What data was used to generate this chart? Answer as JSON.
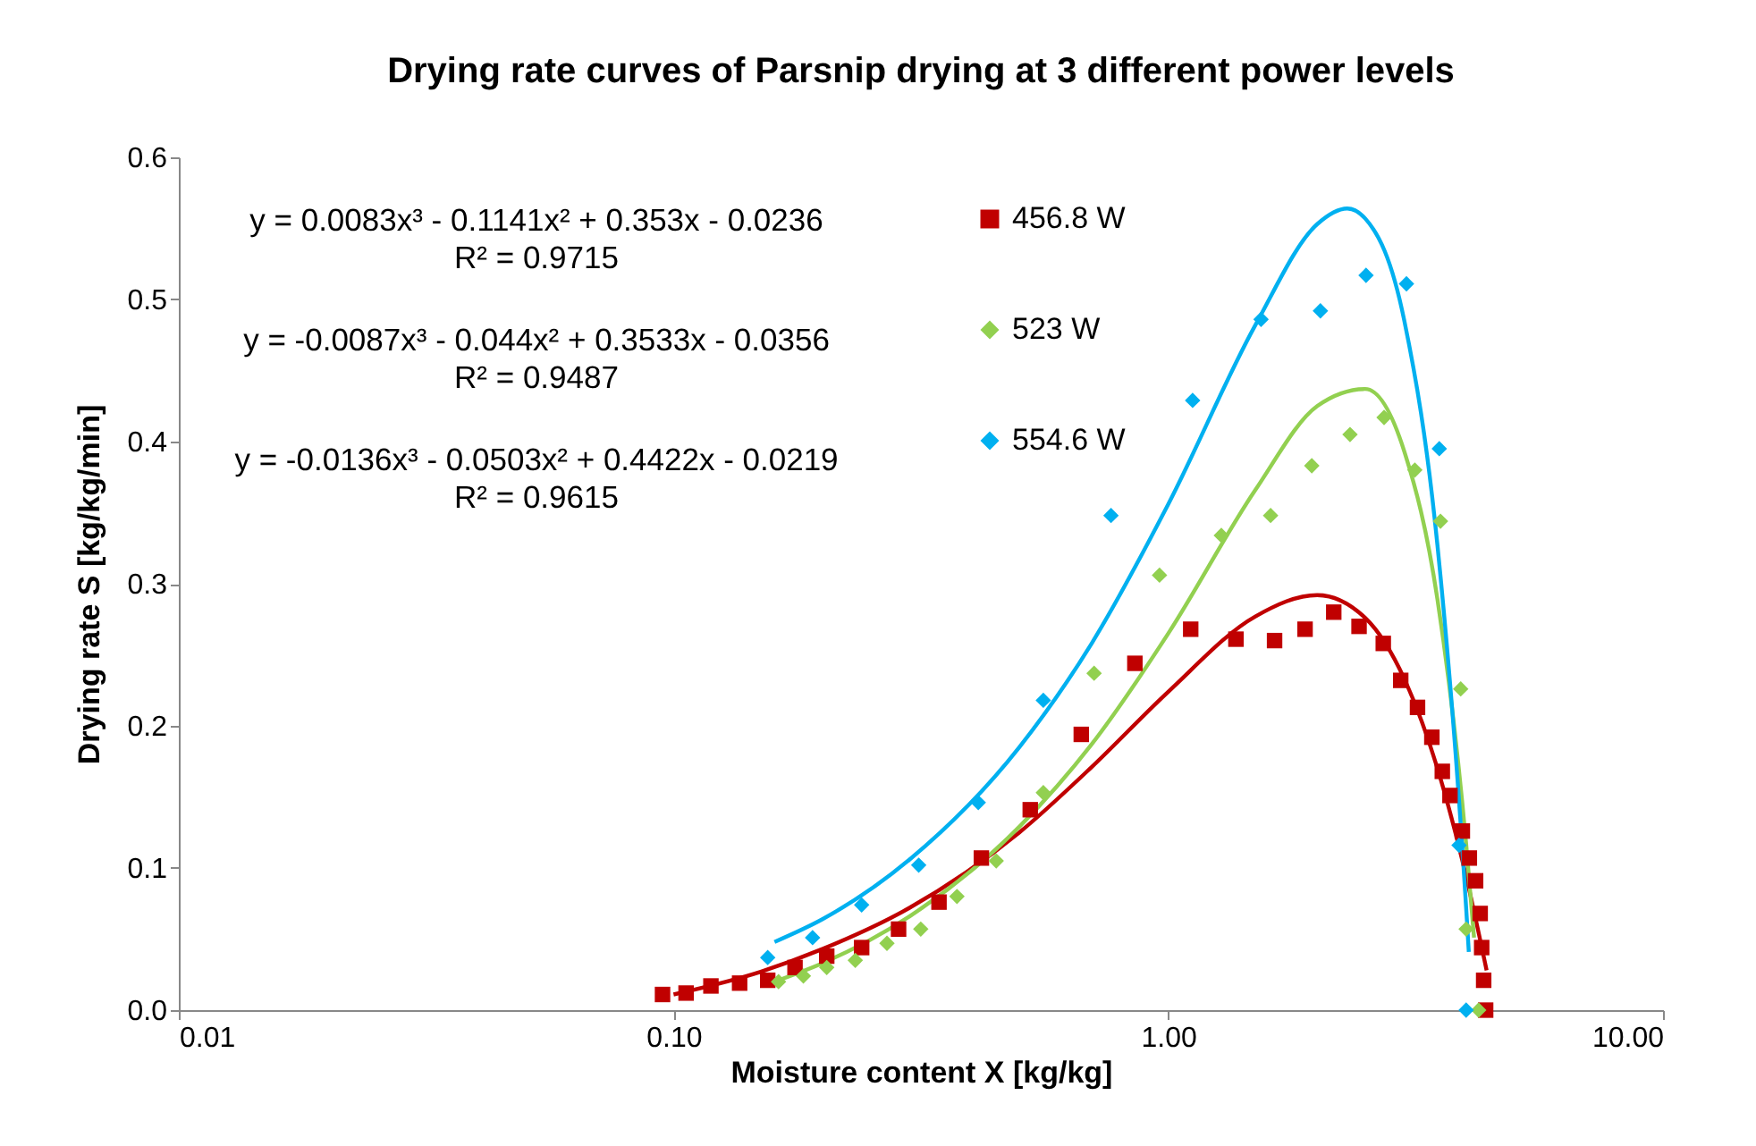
{
  "chart_data": {
    "type": "scatter",
    "title": "Drying rate curves of Parsnip drying at 3 different power levels",
    "xlabel": "Moisture content     X     [kg/kg]",
    "ylabel": "Drying rate        S        [kg/kg/min]",
    "log": "x",
    "xlim": [
      0.01,
      10
    ],
    "ylim": [
      0,
      0.6
    ],
    "xticks": [
      {
        "value": 0.01,
        "label": "0.01"
      },
      {
        "value": 0.1,
        "label": "0.10"
      },
      {
        "value": 1,
        "label": "1.00"
      },
      {
        "value": 10,
        "label": "10.00"
      }
    ],
    "yticks": [
      {
        "value": 0,
        "label": "0.0"
      },
      {
        "value": 0.1,
        "label": "0.1"
      },
      {
        "value": 0.2,
        "label": "0.2"
      },
      {
        "value": 0.3,
        "label": "0.3"
      },
      {
        "value": 0.4,
        "label": "0.4"
      },
      {
        "value": 0.5,
        "label": "0.5"
      },
      {
        "value": 0.6,
        "label": "0.6"
      }
    ],
    "grid": false,
    "legend": "top",
    "annotations": [
      "y = 0.0083x³ - 0.1141x² + 0.353x - 0.0236",
      "R² = 0.9715",
      "y = -0.0087x³ - 0.044x² + 0.3533x - 0.0356",
      "R² = 0.9487",
      "y = -0.0136x³ - 0.0503x² + 0.4422x - 0.0219",
      "R² = 0.9615"
    ],
    "series": [
      {
        "name": "456.8 W",
        "type": "scatter",
        "marker": "square",
        "color": "#c00000",
        "x": [
          0.095,
          0.106,
          0.119,
          0.136,
          0.155,
          0.176,
          0.204,
          0.24,
          0.285,
          0.344,
          0.419,
          0.526,
          0.667,
          0.856,
          1.11,
          1.37,
          1.64,
          1.89,
          2.16,
          2.43,
          2.72,
          2.95,
          3.19,
          3.41,
          3.58,
          3.71,
          3.93,
          4.06,
          4.18,
          4.27,
          4.3,
          4.34,
          4.38
        ],
        "values": [
          0.011,
          0.012,
          0.017,
          0.019,
          0.021,
          0.03,
          0.038,
          0.044,
          0.057,
          0.076,
          0.107,
          0.141,
          0.194,
          0.244,
          0.268,
          0.261,
          0.26,
          0.268,
          0.28,
          0.27,
          0.258,
          0.232,
          0.213,
          0.192,
          0.168,
          0.151,
          0.126,
          0.107,
          0.091,
          0.068,
          0.044,
          0.021,
          0.0
        ]
      },
      {
        "name": "523 W",
        "type": "scatter",
        "marker": "diamond",
        "color": "#92d050",
        "x": [
          0.163,
          0.183,
          0.204,
          0.233,
          0.27,
          0.316,
          0.374,
          0.449,
          0.559,
          0.708,
          0.96,
          1.28,
          1.61,
          1.95,
          2.33,
          2.73,
          3.15,
          3.55,
          3.9,
          4.0,
          4.24
        ],
        "values": [
          0.02,
          0.024,
          0.03,
          0.035,
          0.047,
          0.057,
          0.08,
          0.105,
          0.153,
          0.237,
          0.306,
          0.334,
          0.348,
          0.383,
          0.405,
          0.417,
          0.38,
          0.344,
          0.226,
          0.057,
          0.0
        ]
      },
      {
        "name": "554.6 W",
        "type": "scatter",
        "marker": "diamond",
        "color": "#00b0f0",
        "x": [
          0.155,
          0.191,
          0.24,
          0.313,
          0.413,
          0.559,
          0.766,
          1.12,
          1.54,
          2.03,
          2.51,
          3.03,
          3.53,
          3.87,
          4.0
        ],
        "values": [
          0.037,
          0.051,
          0.074,
          0.102,
          0.146,
          0.218,
          0.348,
          0.429,
          0.486,
          0.492,
          0.517,
          0.511,
          0.395,
          0.116,
          0.0
        ]
      },
      {
        "type": "line",
        "color": "#c00000",
        "line_style": "solid",
        "x": [
          0.1,
          0.15,
          0.2,
          0.3,
          0.5,
          0.7,
          1.0,
          1.5,
          2.0,
          2.5,
          3.0,
          3.5,
          4.0,
          4.4
        ],
        "values": [
          0.011,
          0.027,
          0.043,
          0.072,
          0.125,
          0.171,
          0.224,
          0.277,
          0.292,
          0.276,
          0.233,
          0.17,
          0.094,
          0.028
        ]
      },
      {
        "type": "line",
        "color": "#92d050",
        "line_style": "solid",
        "x": [
          0.16,
          0.2,
          0.3,
          0.5,
          0.7,
          1.0,
          1.5,
          2.0,
          2.5,
          3.0,
          3.5,
          4.0,
          4.15
        ],
        "values": [
          0.02,
          0.033,
          0.066,
          0.129,
          0.187,
          0.265,
          0.366,
          0.425,
          0.437,
          0.393,
          0.289,
          0.117,
          0.051
        ]
      },
      {
        "type": "line",
        "color": "#00b0f0",
        "line_style": "solid",
        "x": [
          0.16,
          0.2,
          0.3,
          0.5,
          0.7,
          1.0,
          1.5,
          2.0,
          2.3,
          2.5,
          3.0,
          3.5,
          4.0,
          4.05
        ],
        "values": [
          0.048,
          0.064,
          0.106,
          0.185,
          0.258,
          0.356,
          0.482,
          0.553,
          0.564,
          0.557,
          0.485,
          0.327,
          0.072,
          0.041
        ]
      }
    ]
  }
}
